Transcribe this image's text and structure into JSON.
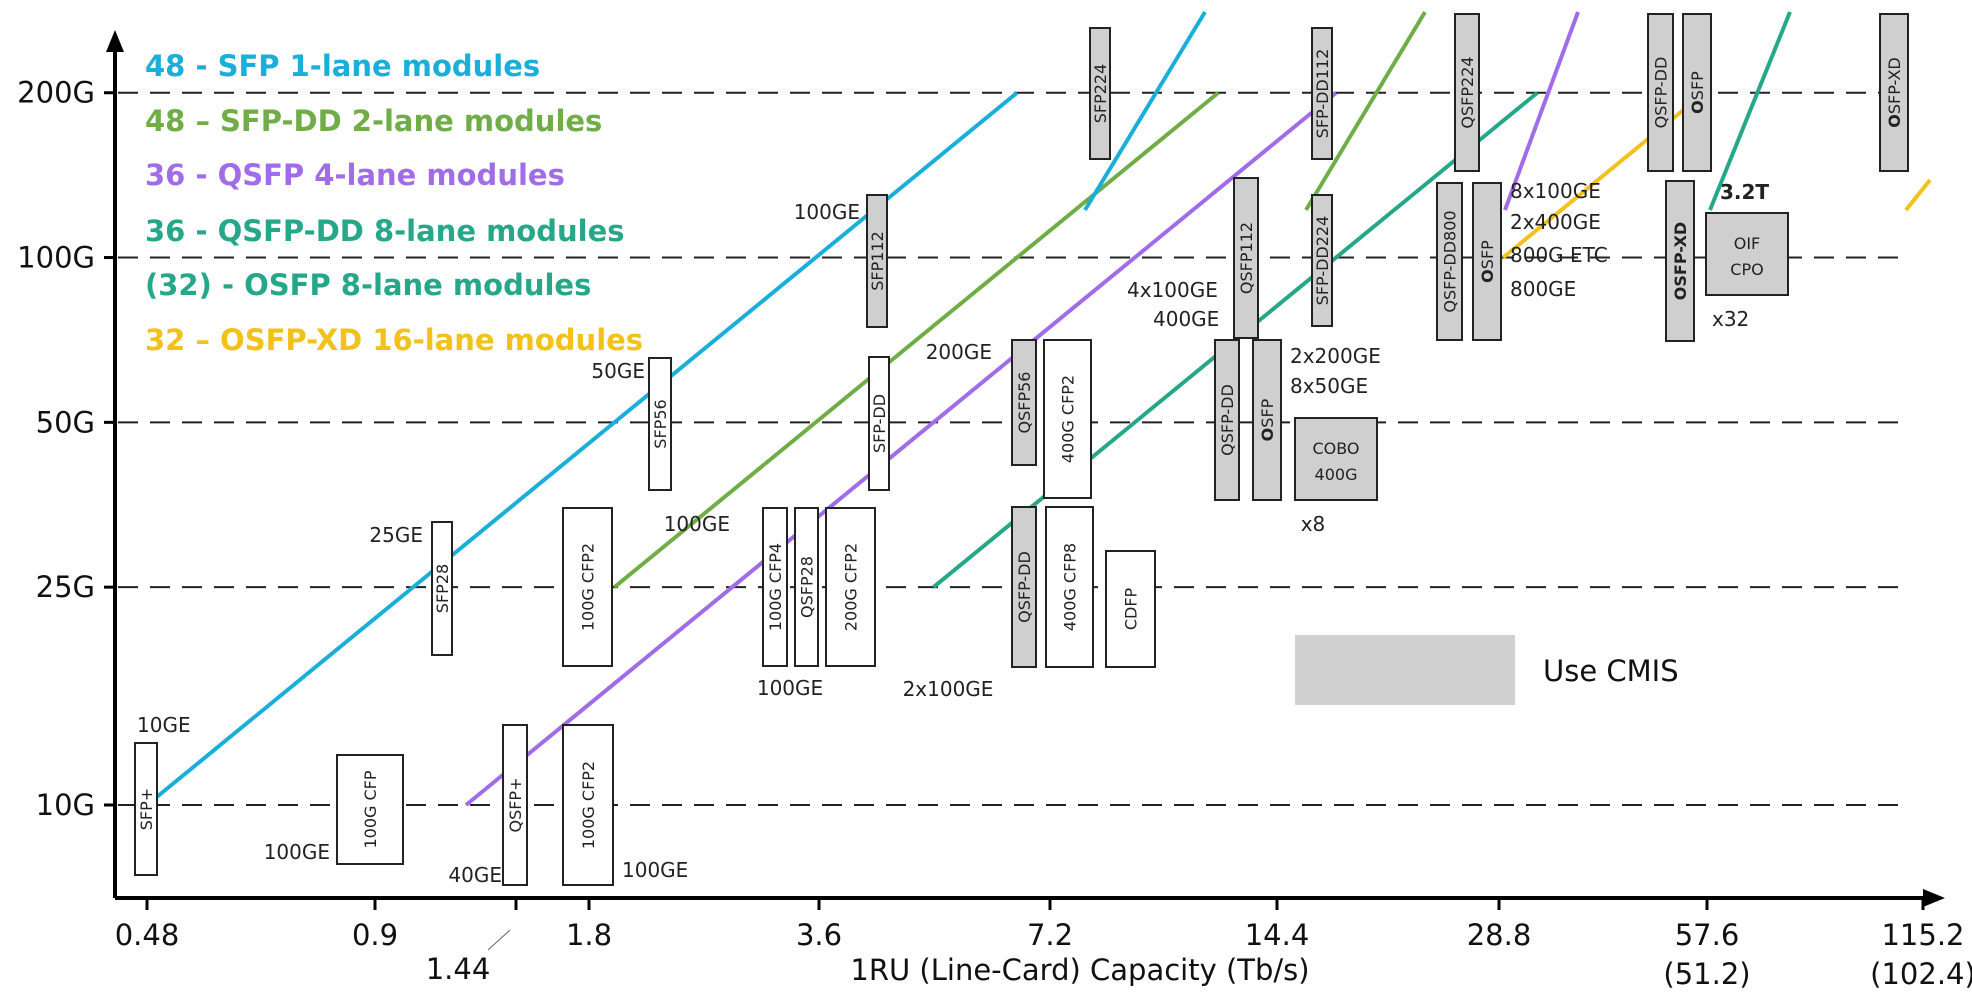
{
  "chart_data": {
    "type": "line",
    "title": "",
    "xlabel": "1RU (Line-Card) Capacity (Tb/s)",
    "ylabel": "",
    "x_scale": "log",
    "y_scale": "log",
    "x_ticks": [
      {
        "value": 0.48,
        "label": "0.48",
        "sublabel": ""
      },
      {
        "value": 0.9,
        "label": "0.9",
        "sublabel": ""
      },
      {
        "value": 1.44,
        "label": "1.44",
        "sublabel": ""
      },
      {
        "value": 1.8,
        "label": "1.8",
        "sublabel": ""
      },
      {
        "value": 3.6,
        "label": "3.6",
        "sublabel": ""
      },
      {
        "value": 7.2,
        "label": "7.2",
        "sublabel": ""
      },
      {
        "value": 14.4,
        "label": "14.4",
        "sublabel": ""
      },
      {
        "value": 28.8,
        "label": "28.8",
        "sublabel": ""
      },
      {
        "value": 57.6,
        "label": "57.6",
        "sublabel": "(51.2)"
      },
      {
        "value": 115.2,
        "label": "115.2",
        "sublabel": "(102.4)"
      }
    ],
    "y_ticks": [
      {
        "value": 10,
        "label": "10G"
      },
      {
        "value": 25,
        "label": "25G"
      },
      {
        "value": 50,
        "label": "50G"
      },
      {
        "value": 100,
        "label": "100G"
      },
      {
        "value": 200,
        "label": "200G"
      }
    ],
    "gridlines": "dashed horizontal at y ticks",
    "legend_position": "top-left",
    "series": [
      {
        "name": "48 - SFP 1-lane modules",
        "color": "#1AAFD8",
        "x": [
          0.48,
          9.6
        ],
        "y": [
          10,
          200
        ]
      },
      {
        "name": "48 – SFP-DD 2-lane modules",
        "color": "#70AD47",
        "x": [
          2.4,
          19.2
        ],
        "y": [
          25,
          200
        ]
      },
      {
        "name": "36 - QSFP 4-lane modules",
        "color": "#A06CE8",
        "x": [
          1.44,
          28.8
        ],
        "y": [
          10,
          200
        ]
      },
      {
        "name": "36 - QSFP-DD 8-lane modules",
        "color": "#27A78A",
        "x": [
          7.2,
          57.6
        ],
        "y": [
          25,
          200
        ]
      },
      {
        "name": "(32) - OSFP 8-lane modules",
        "color": "#27A78A",
        "x": [],
        "y": []
      },
      {
        "name": "32 – OSFP-XD 16-lane modules",
        "color": "#F2C21B",
        "x": [
          51.2,
          102.4
        ],
        "y": [
          100,
          200
        ]
      }
    ],
    "modules": [
      {
        "label": "SFP+",
        "filled": false,
        "bold_prefix": false
      },
      {
        "label": "100G CFP",
        "filled": false,
        "bold_prefix": false
      },
      {
        "label": "QSFP+",
        "filled": false,
        "bold_prefix": false
      },
      {
        "label": "100G CFP2",
        "filled": false,
        "bold_prefix": false
      },
      {
        "label": "SFP28",
        "filled": false,
        "bold_prefix": false
      },
      {
        "label": "100G CFP2",
        "filled": false,
        "bold_prefix": false
      },
      {
        "label": "SFP56",
        "filled": false,
        "bold_prefix": false
      },
      {
        "label": "100G CFP4",
        "filled": false,
        "bold_prefix": false
      },
      {
        "label": "QSFP28",
        "filled": false,
        "bold_prefix": false
      },
      {
        "label": "200G CFP2",
        "filled": false,
        "bold_prefix": false
      },
      {
        "label": "SFP-DD",
        "filled": false,
        "bold_prefix": false
      },
      {
        "label": "SFP112",
        "filled": true,
        "bold_prefix": false
      },
      {
        "label": "QSFP56",
        "filled": true,
        "bold_prefix": false
      },
      {
        "label": "400G CFP2",
        "filled": false,
        "bold_prefix": false
      },
      {
        "label": "QSFP-DD",
        "filled": true,
        "bold_prefix": false
      },
      {
        "label": "400G CFP8",
        "filled": false,
        "bold_prefix": false
      },
      {
        "label": "CDFP",
        "filled": false,
        "bold_prefix": false
      },
      {
        "label": "SFP224",
        "filled": true,
        "bold_prefix": false
      },
      {
        "label": "SFP-DD112",
        "filled": true,
        "bold_prefix": false
      },
      {
        "label": "SFP-DD224",
        "filled": true,
        "bold_prefix": false
      },
      {
        "label": "QSFP112",
        "filled": true,
        "bold_prefix": false
      },
      {
        "label": "QSFP-DD",
        "filled": true,
        "bold_prefix": false
      },
      {
        "label": "OSFP",
        "filled": true,
        "bold_prefix": true
      },
      {
        "label": "QSFP224",
        "filled": true,
        "bold_prefix": false
      },
      {
        "label": "QSFP-DD800",
        "filled": true,
        "bold_prefix": false
      },
      {
        "label": "OSFP",
        "filled": true,
        "bold_prefix": true
      },
      {
        "label": "QSFP-DD",
        "filled": true,
        "bold_prefix": false
      },
      {
        "label": "OSFP",
        "filled": true,
        "bold_prefix": true
      },
      {
        "label": "OSFP-XD",
        "filled": true,
        "bold_prefix": false,
        "all_bold": true
      },
      {
        "label": "OSFP-XD",
        "filled": true,
        "bold_prefix": true
      }
    ],
    "packages": [
      {
        "lines": [
          "COBO",
          "400G"
        ]
      },
      {
        "lines": [
          "OIF",
          "CPO"
        ]
      }
    ],
    "annotations": [
      "10GE",
      "100GE",
      "40GE",
      "100GE",
      "25GE",
      "50GE",
      "100GE",
      "100GE",
      "2x100GE",
      "200GE",
      "100GE",
      "4x100GE",
      "400GE",
      "2x200GE",
      "8x50GE",
      "x8",
      "8x100GE",
      "2x400GE",
      "800G ETC",
      "800GE",
      "3.2T",
      "x32"
    ],
    "key_box_label": "Use CMIS",
    "key_box_color": "#d0d0d0"
  }
}
